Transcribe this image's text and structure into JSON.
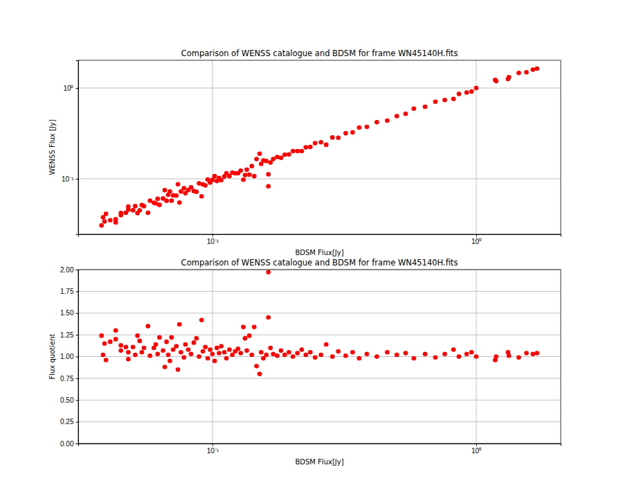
{
  "chart_data": [
    {
      "type": "scatter",
      "title": "Comparison of WENSS catalogue and BDSM for frame WN45140H.fits",
      "xlabel": "BDSM Flux[Jy]",
      "ylabel": "WENSS Flux [Jy]",
      "color": "#ff0000",
      "marker": "circle",
      "log": true,
      "grid": true,
      "xlim": [
        0.031,
        2.09
      ],
      "ylim": [
        0.0245,
        2.02
      ],
      "xticks": [
        {
          "value": 0.1,
          "label": "10⁻¹"
        },
        {
          "value": 1,
          "label": "10⁰"
        }
      ],
      "yticks": [
        {
          "value": 0.1,
          "label": "10⁻¹"
        },
        {
          "value": 1,
          "label": "10⁰"
        }
      ],
      "x": [
        0.038,
        0.0385,
        0.039,
        0.0395,
        0.041,
        0.043,
        0.043,
        0.045,
        0.045,
        0.047,
        0.048,
        0.048,
        0.05,
        0.051,
        0.052,
        0.053,
        0.054,
        0.055,
        0.057,
        0.058,
        0.06,
        0.061,
        0.062,
        0.063,
        0.065,
        0.066,
        0.067,
        0.068,
        0.069,
        0.07,
        0.071,
        0.073,
        0.074,
        0.075,
        0.076,
        0.078,
        0.079,
        0.081,
        0.083,
        0.085,
        0.087,
        0.089,
        0.091,
        0.092,
        0.094,
        0.096,
        0.098,
        0.1,
        0.102,
        0.104,
        0.106,
        0.108,
        0.111,
        0.113,
        0.116,
        0.119,
        0.122,
        0.125,
        0.128,
        0.131,
        0.133,
        0.135,
        0.138,
        0.141,
        0.144,
        0.147,
        0.151,
        0.153,
        0.156,
        0.16,
        0.163,
        0.163,
        0.166,
        0.17,
        0.176,
        0.182,
        0.188,
        0.195,
        0.202,
        0.21,
        0.218,
        0.226,
        0.235,
        0.245,
        0.258,
        0.27,
        0.285,
        0.3,
        0.32,
        0.34,
        0.36,
        0.385,
        0.42,
        0.46,
        0.5,
        0.54,
        0.58,
        0.64,
        0.7,
        0.76,
        0.82,
        0.86,
        0.92,
        0.96,
        1.0,
        1.18,
        1.19,
        1.32,
        1.33,
        1.45,
        1.55,
        1.64,
        1.7
      ],
      "values": [
        0.0306,
        0.0377,
        0.0339,
        0.0411,
        0.035,
        0.0331,
        0.0358,
        0.0421,
        0.0398,
        0.0423,
        0.0457,
        0.0495,
        0.045,
        0.05,
        0.0419,
        0.0449,
        0.0514,
        0.05,
        0.0422,
        0.0574,
        0.0545,
        0.0535,
        0.0602,
        0.0516,
        0.0607,
        0.075,
        0.0573,
        0.0667,
        0.0726,
        0.0574,
        0.0657,
        0.0652,
        0.0871,
        0.0547,
        0.0724,
        0.0788,
        0.0693,
        0.075,
        0.0806,
        0.0733,
        0.0719,
        0.089,
        0.0641,
        0.0868,
        0.0847,
        0.098,
        0.0907,
        0.0971,
        0.107,
        0.0945,
        0.102,
        0.0964,
        0.106,
        0.115,
        0.107,
        0.117,
        0.115,
        0.115,
        0.123,
        0.0978,
        0.11,
        0.126,
        0.111,
        0.138,
        0.107,
        0.165,
        0.189,
        0.146,
        0.159,
        0.157,
        0.0827,
        0.112,
        0.151,
        0.165,
        0.174,
        0.17,
        0.184,
        0.186,
        0.202,
        0.202,
        0.202,
        0.222,
        0.224,
        0.247,
        0.253,
        0.237,
        0.285,
        0.283,
        0.317,
        0.324,
        0.367,
        0.374,
        0.42,
        0.438,
        0.49,
        0.519,
        0.592,
        0.621,
        0.707,
        0.738,
        0.759,
        0.86,
        0.893,
        0.914,
        1.0,
        1.229,
        1.19,
        1.257,
        1.317,
        1.465,
        1.49,
        1.592,
        1.635
      ]
    },
    {
      "type": "scatter",
      "title": "Comparison of WENSS catalogue and BDSM for frame WN45140H.fits",
      "xlabel": "BDSM Flux[Jy]",
      "ylabel": "Flux quotient",
      "color": "#ff0000",
      "marker": "circle",
      "log": "x",
      "grid": true,
      "xlim": [
        0.031,
        2.09
      ],
      "ylim": [
        0,
        2
      ],
      "xticks": [
        {
          "value": 0.1,
          "label": "10⁻¹"
        },
        {
          "value": 1,
          "label": "10⁰"
        }
      ],
      "yticks": [
        {
          "value": 0,
          "label": "0.00"
        },
        {
          "value": 0.25,
          "label": "0.25"
        },
        {
          "value": 0.5,
          "label": "0.50"
        },
        {
          "value": 0.75,
          "label": "0.75"
        },
        {
          "value": 1,
          "label": "1.00"
        },
        {
          "value": 1.25,
          "label": "1.25"
        },
        {
          "value": 1.5,
          "label": "1.50"
        },
        {
          "value": 1.75,
          "label": "1.75"
        },
        {
          "value": 2,
          "label": "2.00"
        }
      ],
      "x": [
        0.038,
        0.0385,
        0.039,
        0.0395,
        0.041,
        0.043,
        0.043,
        0.045,
        0.045,
        0.047,
        0.048,
        0.048,
        0.05,
        0.051,
        0.052,
        0.053,
        0.054,
        0.055,
        0.057,
        0.058,
        0.06,
        0.061,
        0.062,
        0.063,
        0.065,
        0.066,
        0.067,
        0.068,
        0.069,
        0.07,
        0.071,
        0.073,
        0.074,
        0.075,
        0.076,
        0.078,
        0.079,
        0.081,
        0.083,
        0.085,
        0.087,
        0.089,
        0.091,
        0.092,
        0.094,
        0.096,
        0.098,
        0.1,
        0.102,
        0.104,
        0.106,
        0.108,
        0.111,
        0.113,
        0.116,
        0.119,
        0.122,
        0.125,
        0.128,
        0.131,
        0.133,
        0.135,
        0.138,
        0.141,
        0.144,
        0.147,
        0.151,
        0.153,
        0.156,
        0.16,
        0.163,
        0.163,
        0.166,
        0.17,
        0.176,
        0.182,
        0.188,
        0.195,
        0.202,
        0.21,
        0.218,
        0.226,
        0.235,
        0.245,
        0.258,
        0.27,
        0.285,
        0.3,
        0.32,
        0.34,
        0.36,
        0.385,
        0.42,
        0.46,
        0.5,
        0.54,
        0.58,
        0.64,
        0.7,
        0.76,
        0.82,
        0.86,
        0.92,
        0.96,
        1.0,
        1.18,
        1.19,
        1.32,
        1.33,
        1.45,
        1.55,
        1.64,
        1.7
      ],
      "values": [
        1.24,
        1.02,
        1.15,
        0.96,
        1.17,
        1.3,
        1.2,
        1.07,
        1.13,
        1.11,
        1.05,
        0.97,
        1.11,
        1.02,
        1.24,
        1.18,
        1.05,
        1.1,
        1.35,
        1.01,
        1.1,
        1.14,
        1.03,
        1.22,
        1.07,
        0.88,
        1.17,
        1.02,
        0.95,
        1.22,
        1.08,
        1.12,
        0.85,
        1.37,
        1.05,
        0.99,
        1.14,
        1.08,
        1.03,
        1.16,
        1.21,
        1.0,
        1.42,
        1.06,
        1.11,
        0.98,
        1.08,
        1.03,
        0.95,
        1.1,
        1.04,
        1.12,
        1.05,
        0.98,
        1.08,
        1.02,
        1.06,
        1.09,
        1.04,
        1.34,
        1.21,
        1.07,
        1.24,
        1.02,
        1.34,
        0.89,
        0.8,
        1.05,
        0.98,
        1.02,
        1.97,
        1.45,
        1.1,
        1.03,
        1.01,
        1.07,
        1.02,
        1.05,
        1.0,
        1.04,
        1.08,
        1.02,
        1.05,
        0.99,
        1.02,
        1.14,
        1.0,
        1.06,
        1.01,
        1.05,
        0.98,
        1.03,
        1.0,
        1.05,
        1.02,
        1.04,
        0.98,
        1.03,
        0.99,
        1.03,
        1.08,
        1.0,
        1.03,
        1.05,
        1.0,
        0.96,
        1.0,
        1.05,
        1.01,
        0.99,
        1.04,
        1.03,
        1.04
      ]
    }
  ]
}
